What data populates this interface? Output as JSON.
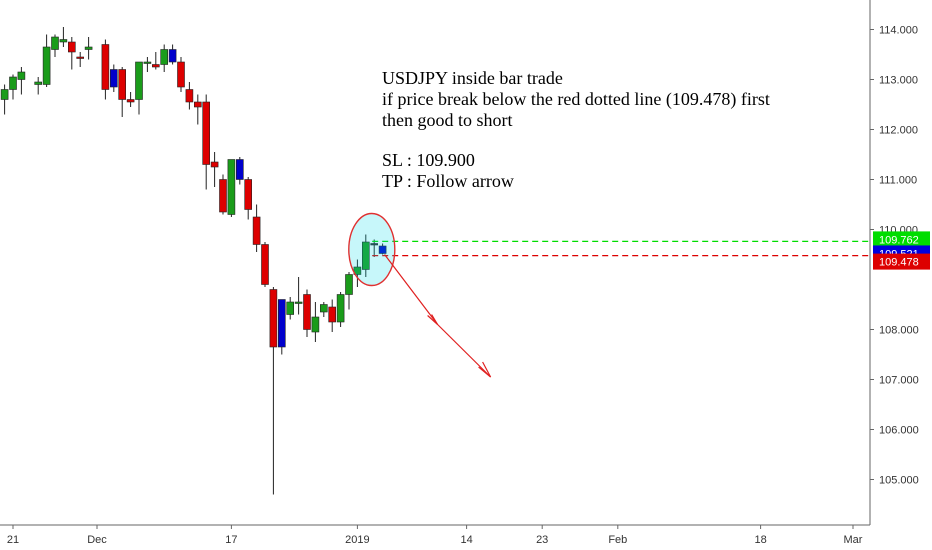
{
  "chart_data": {
    "type": "candlestick",
    "ylim": [
      104.5,
      114.6
    ],
    "x_ticks": [
      {
        "label": "21",
        "day": 0
      },
      {
        "label": "Dec",
        "day": 10
      },
      {
        "label": "17",
        "day": 26
      },
      {
        "label": "2019",
        "day": 41
      },
      {
        "label": "14",
        "day": 54
      },
      {
        "label": "23",
        "day": 63
      },
      {
        "label": "Feb",
        "day": 72
      },
      {
        "label": "18",
        "day": 89
      },
      {
        "label": "Mar",
        "day": 100
      }
    ],
    "y_ticks": [
      {
        "label": "114.000",
        "value": 114
      },
      {
        "label": "113.000",
        "value": 113
      },
      {
        "label": "112.000",
        "value": 112
      },
      {
        "label": "111.000",
        "value": 111
      },
      {
        "label": "110.000",
        "value": 110
      },
      {
        "label": "108.000",
        "value": 108
      },
      {
        "label": "107.000",
        "value": 107
      },
      {
        "label": "106.000",
        "value": 106
      },
      {
        "label": "105.000",
        "value": 105
      }
    ],
    "candles": [
      {
        "day": -1,
        "o": 112.6,
        "h": 112.9,
        "l": 112.3,
        "c": 112.8,
        "color": "#1a9c1a"
      },
      {
        "day": 0,
        "o": 112.8,
        "h": 113.1,
        "l": 112.6,
        "c": 113.05,
        "color": "#1a9c1a"
      },
      {
        "day": 1,
        "o": 113.0,
        "h": 113.25,
        "l": 112.7,
        "c": 113.15,
        "color": "#1a9c1a"
      },
      {
        "day": 3,
        "o": 112.9,
        "h": 113.05,
        "l": 112.7,
        "c": 112.95,
        "color": "#1a9c1a"
      },
      {
        "day": 4,
        "o": 112.9,
        "h": 113.9,
        "l": 112.85,
        "c": 113.65,
        "color": "#1a9c1a"
      },
      {
        "day": 5,
        "o": 113.6,
        "h": 113.9,
        "l": 113.45,
        "c": 113.85,
        "color": "#1a9c1a"
      },
      {
        "day": 6,
        "o": 113.75,
        "h": 114.05,
        "l": 113.65,
        "c": 113.8,
        "color": "#1a9c1a"
      },
      {
        "day": 7,
        "o": 113.75,
        "h": 113.85,
        "l": 113.2,
        "c": 113.55,
        "color": "#dd0000"
      },
      {
        "day": 8,
        "o": 113.45,
        "h": 113.55,
        "l": 113.25,
        "c": 113.45,
        "color": "#dd0000"
      },
      {
        "day": 9,
        "o": 113.65,
        "h": 113.85,
        "l": 113.4,
        "c": 113.6,
        "color": "#1a9c1a"
      },
      {
        "day": 11,
        "o": 113.7,
        "h": 113.8,
        "l": 112.6,
        "c": 112.8,
        "color": "#dd0000"
      },
      {
        "day": 12,
        "o": 113.2,
        "h": 113.3,
        "l": 112.75,
        "c": 112.85,
        "color": "#0000cc"
      },
      {
        "day": 13,
        "o": 113.2,
        "h": 113.25,
        "l": 112.25,
        "c": 112.6,
        "color": "#dd0000"
      },
      {
        "day": 14,
        "o": 112.6,
        "h": 112.75,
        "l": 112.45,
        "c": 112.55,
        "color": "#dd0000"
      },
      {
        "day": 15,
        "o": 112.6,
        "h": 113.35,
        "l": 112.3,
        "c": 113.35,
        "color": "#1a9c1a"
      },
      {
        "day": 16,
        "o": 113.35,
        "h": 113.45,
        "l": 113.15,
        "c": 113.35,
        "color": "#1a9c1a"
      },
      {
        "day": 17,
        "o": 113.3,
        "h": 113.55,
        "l": 113.2,
        "c": 113.25,
        "color": "#dd0000"
      },
      {
        "day": 18,
        "o": 113.3,
        "h": 113.7,
        "l": 113.15,
        "c": 113.6,
        "color": "#1a9c1a"
      },
      {
        "day": 19,
        "o": 113.6,
        "h": 113.7,
        "l": 113.3,
        "c": 113.35,
        "color": "#0000cc"
      },
      {
        "day": 20,
        "o": 113.35,
        "h": 113.45,
        "l": 112.75,
        "c": 112.85,
        "color": "#dd0000"
      },
      {
        "day": 21,
        "o": 112.8,
        "h": 112.95,
        "l": 112.4,
        "c": 112.55,
        "color": "#dd0000"
      },
      {
        "day": 22,
        "o": 112.55,
        "h": 112.7,
        "l": 112.1,
        "c": 112.45,
        "color": "#dd0000"
      },
      {
        "day": 23,
        "o": 112.55,
        "h": 112.7,
        "l": 110.8,
        "c": 111.3,
        "color": "#dd0000"
      },
      {
        "day": 24,
        "o": 111.35,
        "h": 111.55,
        "l": 110.85,
        "c": 111.25,
        "color": "#dd0000"
      },
      {
        "day": 25,
        "o": 111.0,
        "h": 111.1,
        "l": 110.3,
        "c": 110.35,
        "color": "#dd0000"
      },
      {
        "day": 26,
        "o": 110.3,
        "h": 111.4,
        "l": 110.25,
        "c": 111.4,
        "color": "#1a9c1a"
      },
      {
        "day": 27,
        "o": 111.4,
        "h": 111.45,
        "l": 110.9,
        "c": 111.0,
        "color": "#0000cc"
      },
      {
        "day": 28,
        "o": 111.0,
        "h": 111.05,
        "l": 110.2,
        "c": 110.4,
        "color": "#dd0000"
      },
      {
        "day": 29,
        "o": 110.25,
        "h": 110.5,
        "l": 109.55,
        "c": 109.7,
        "color": "#dd0000"
      },
      {
        "day": 30,
        "o": 109.7,
        "h": 109.75,
        "l": 108.85,
        "c": 108.9,
        "color": "#dd0000"
      },
      {
        "day": 31,
        "o": 108.8,
        "h": 108.85,
        "l": 104.7,
        "c": 107.65,
        "color": "#dd0000"
      },
      {
        "day": 32,
        "o": 107.65,
        "h": 108.6,
        "l": 107.5,
        "c": 108.6,
        "color": "#0000cc"
      },
      {
        "day": 33,
        "o": 108.3,
        "h": 108.65,
        "l": 108.2,
        "c": 108.55,
        "color": "#1a9c1a"
      },
      {
        "day": 34,
        "o": 108.55,
        "h": 109.05,
        "l": 108.3,
        "c": 108.55,
        "color": "#1a9c1a"
      },
      {
        "day": 35,
        "o": 108.7,
        "h": 108.8,
        "l": 107.85,
        "c": 108.0,
        "color": "#dd0000"
      },
      {
        "day": 36,
        "o": 107.95,
        "h": 108.55,
        "l": 107.75,
        "c": 108.25,
        "color": "#1a9c1a"
      },
      {
        "day": 37,
        "o": 108.35,
        "h": 108.55,
        "l": 108.25,
        "c": 108.5,
        "color": "#1a9c1a"
      },
      {
        "day": 38,
        "o": 108.45,
        "h": 108.6,
        "l": 107.95,
        "c": 108.15,
        "color": "#dd0000"
      },
      {
        "day": 39,
        "o": 108.15,
        "h": 108.75,
        "l": 108.05,
        "c": 108.7,
        "color": "#1a9c1a"
      },
      {
        "day": 40,
        "o": 108.7,
        "h": 109.15,
        "l": 108.4,
        "c": 109.1,
        "color": "#1a9c1a"
      },
      {
        "day": 41,
        "o": 109.1,
        "h": 109.4,
        "l": 108.85,
        "c": 109.25,
        "color": "#1a9c1a"
      },
      {
        "day": 42,
        "o": 109.2,
        "h": 109.9,
        "l": 109.05,
        "c": 109.75,
        "color": "#1a9c1a"
      },
      {
        "day": 43,
        "o": 109.7,
        "h": 109.8,
        "l": 109.45,
        "c": 109.72,
        "color": "#333333"
      },
      {
        "day": 44,
        "o": 109.67,
        "h": 109.72,
        "l": 109.5,
        "c": 109.52,
        "color": "#0000cc"
      }
    ],
    "levels": [
      {
        "label": "109.762",
        "value": 109.762,
        "color": "#00dd00",
        "text_color": "#000000",
        "dashed": true
      },
      {
        "label": "109.521",
        "value": 109.521,
        "color": "#0000dd",
        "text_color": "#ffffff",
        "dashed": false
      },
      {
        "label": "109.478",
        "value": 109.478,
        "color": "#dd0000",
        "text_color": "#ffffff",
        "dashed": true
      }
    ],
    "annotation_lines": [
      "USDJPY inside bar trade",
      "if price break below the red dotted line (109.478) first",
      "then good to short",
      "",
      "SL : 109.900",
      "TP : Follow arrow"
    ]
  }
}
